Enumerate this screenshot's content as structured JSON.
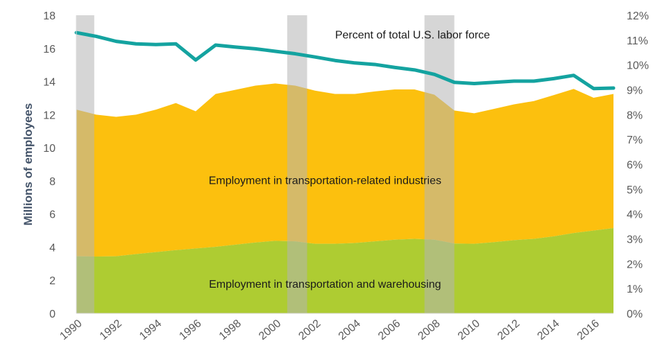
{
  "chart_data": {
    "type": "area",
    "title": "",
    "xlabel": "",
    "ylabel": "Millions of employees",
    "ylim": [
      0,
      18
    ],
    "yticks": [
      0,
      2,
      4,
      6,
      8,
      10,
      12,
      14,
      16,
      18
    ],
    "y2lim": [
      0,
      12
    ],
    "y2ticks": [
      "0%",
      "1%",
      "2%",
      "3%",
      "4%",
      "5%",
      "6%",
      "7%",
      "8%",
      "9%",
      "10%",
      "11%",
      "12%"
    ],
    "xlim": [
      1990,
      2017
    ],
    "xticks": [
      "1990",
      "1992",
      "1994",
      "1996",
      "1998",
      "2000",
      "2002",
      "2004",
      "2006",
      "2008",
      "2010",
      "2012",
      "2014",
      "2016"
    ],
    "x": [
      1990,
      1991,
      1992,
      1993,
      1994,
      1995,
      1996,
      1997,
      1998,
      1999,
      2000,
      2001,
      2002,
      2003,
      2004,
      2005,
      2006,
      2007,
      2008,
      2009,
      2010,
      2011,
      2012,
      2013,
      2014,
      2015,
      2016,
      2017
    ],
    "series": [
      {
        "name": "Employment in transportation and warehousing",
        "color": "#aecc32",
        "axis": "left",
        "values": [
          3.45,
          3.43,
          3.45,
          3.58,
          3.7,
          3.82,
          3.92,
          4.02,
          4.15,
          4.28,
          4.38,
          4.35,
          4.2,
          4.2,
          4.25,
          4.35,
          4.45,
          4.5,
          4.45,
          4.22,
          4.2,
          4.3,
          4.42,
          4.5,
          4.65,
          4.85,
          5.0,
          5.15
        ]
      },
      {
        "name": "Employment in transportation-related industries",
        "color": "#fcc00e",
        "axis": "left",
        "stacked_total": [
          12.3,
          12.0,
          11.87,
          12.0,
          12.3,
          12.7,
          12.2,
          13.25,
          13.5,
          13.75,
          13.88,
          13.75,
          13.45,
          13.25,
          13.25,
          13.4,
          13.52,
          13.52,
          13.2,
          12.25,
          12.08,
          12.35,
          12.62,
          12.82,
          13.18,
          13.55,
          13.02,
          13.25
        ]
      },
      {
        "name": "Percent of total U.S. labor force",
        "color": "#14a3a0",
        "axis": "right",
        "type": "line",
        "values": [
          11.3,
          11.15,
          10.95,
          10.85,
          10.82,
          10.85,
          10.2,
          10.8,
          10.72,
          10.65,
          10.55,
          10.45,
          10.32,
          10.18,
          10.08,
          10.02,
          9.9,
          9.8,
          9.62,
          9.3,
          9.25,
          9.3,
          9.35,
          9.35,
          9.45,
          9.58,
          9.05,
          9.07
        ]
      }
    ],
    "recession_bands": [
      [
        1990.0,
        1990.9
      ],
      [
        2000.6,
        2001.6
      ],
      [
        2007.5,
        2009.0
      ]
    ],
    "annotations": [
      {
        "text": "Percent of total U.S. labor force",
        "x": 2006.9,
        "y": 16.6
      },
      {
        "text": "Employment in transportation-related industries",
        "x": 2002.5,
        "y": 7.8
      },
      {
        "text": "Employment in transportation and warehousing",
        "x": 2002.5,
        "y": 1.55
      }
    ]
  }
}
